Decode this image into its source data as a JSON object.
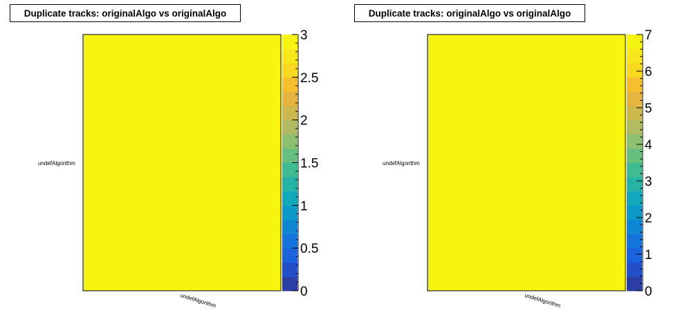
{
  "chart_data": [
    {
      "type": "heatmap",
      "title": "Duplicate tracks: originalAlgo vs originalAlgo",
      "x_categories": [
        "undefAlgorithm"
      ],
      "y_categories": [
        "undefAlgorithm"
      ],
      "values": [
        [
          3
        ]
      ],
      "zlim": [
        0,
        3
      ],
      "z_ticks": [
        "0",
        "0.5",
        "1",
        "1.5",
        "2",
        "2.5",
        "3"
      ],
      "xlabel": "",
      "ylabel": "",
      "colorscale": "parula",
      "grid": false,
      "legend": "colorbar-right"
    },
    {
      "type": "heatmap",
      "title": "Duplicate tracks: originalAlgo vs originalAlgo",
      "x_categories": [
        "undefAlgorithm"
      ],
      "y_categories": [
        "undefAlgorithm"
      ],
      "values": [
        [
          7
        ]
      ],
      "zlim": [
        0,
        7
      ],
      "z_ticks": [
        "0",
        "1",
        "2",
        "3",
        "4",
        "5",
        "6",
        "7"
      ],
      "xlabel": "",
      "ylabel": "",
      "colorscale": "parula",
      "grid": false,
      "legend": "colorbar-right"
    }
  ],
  "colors": {
    "palette": [
      "#2a3ea4",
      "#2250c9",
      "#1c62dd",
      "#1474dc",
      "#0e86d3",
      "#0c98c9",
      "#12a8bb",
      "#24b3a5",
      "#3fbc92",
      "#65bf7f",
      "#8dbf71",
      "#b1bc62",
      "#cdb84e",
      "#e6b53f",
      "#f6bf2d",
      "#f9d820",
      "#f8e81b",
      "#f7f50e"
    ]
  }
}
